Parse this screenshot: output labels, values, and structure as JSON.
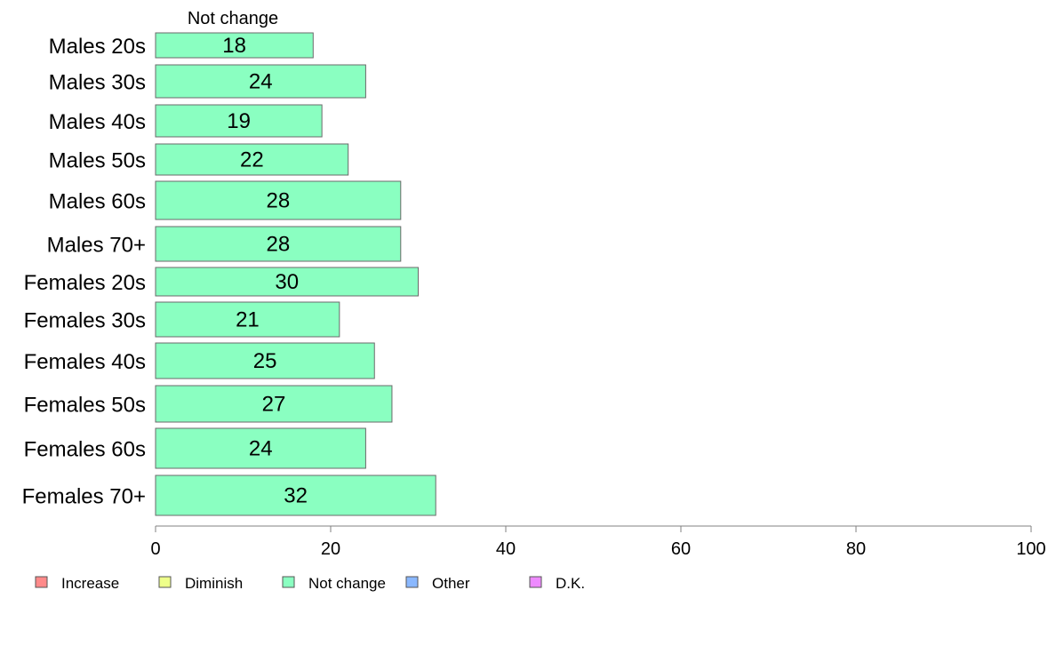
{
  "chart_data": {
    "type": "bar",
    "orientation": "horizontal",
    "series_title": "Not change",
    "categories": [
      "Males 20s",
      "Males 30s",
      "Males 40s",
      "Males 50s",
      "Males 60s",
      "Males 70+",
      "Females 20s",
      "Females 30s",
      "Females 40s",
      "Females 50s",
      "Females 60s",
      "Females 70+"
    ],
    "series": [
      {
        "name": "Not change",
        "color": "#8affc1",
        "values": [
          18,
          24,
          19,
          22,
          28,
          28,
          30,
          21,
          25,
          27,
          24,
          32
        ]
      }
    ],
    "bar_labels": [
      "18",
      "24",
      "19",
      "22",
      "28",
      "28",
      "30",
      "21",
      "25",
      "27",
      "24",
      "32"
    ],
    "xlim": [
      0,
      100
    ],
    "xticks": [
      0,
      20,
      40,
      60,
      80,
      100
    ],
    "xtick_labels": [
      "0",
      "20",
      "40",
      "60",
      "80",
      "100"
    ],
    "grid": false,
    "legend": {
      "placement": "bottom-left",
      "items": [
        {
          "label": "Increase",
          "color": "#ff8a8a"
        },
        {
          "label": "Diminish",
          "color": "#eeff8a"
        },
        {
          "label": "Not change",
          "color": "#8affc1"
        },
        {
          "label": "Other",
          "color": "#8ab8ff"
        },
        {
          "label": "D.K.",
          "color": "#ee8aff"
        }
      ]
    }
  }
}
